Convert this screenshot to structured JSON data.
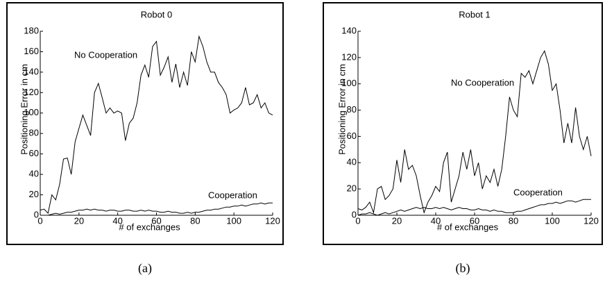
{
  "chart_data": [
    {
      "type": "line",
      "title": "Robot 0",
      "caption": "(a)",
      "xlabel": "# of exchanges",
      "ylabel": "Positioning Error in cm",
      "x": [
        0,
        2,
        4,
        6,
        8,
        10,
        12,
        14,
        16,
        18,
        20,
        22,
        24,
        26,
        28,
        30,
        32,
        34,
        36,
        38,
        40,
        42,
        44,
        46,
        48,
        50,
        52,
        54,
        56,
        58,
        60,
        62,
        64,
        66,
        68,
        70,
        72,
        74,
        76,
        78,
        80,
        82,
        84,
        86,
        88,
        90,
        92,
        94,
        96,
        98,
        100,
        102,
        104,
        106,
        108,
        110,
        112,
        114,
        116,
        118,
        120
      ],
      "series": [
        {
          "name": "No Cooperation",
          "color": "#000000",
          "values": [
            5,
            6,
            2,
            20,
            15,
            30,
            55,
            56,
            40,
            72,
            85,
            98,
            88,
            78,
            120,
            129,
            115,
            100,
            105,
            100,
            102,
            100,
            73,
            90,
            95,
            110,
            137,
            147,
            135,
            165,
            170,
            137,
            145,
            155,
            130,
            148,
            125,
            140,
            127,
            160,
            150,
            175,
            165,
            150,
            140,
            140,
            130,
            125,
            118,
            100,
            103,
            105,
            110,
            125,
            108,
            110,
            118,
            105,
            110,
            100,
            98
          ]
        },
        {
          "name": "Cooperation",
          "color": "#000000",
          "values": [
            0,
            0,
            0,
            1,
            2,
            1,
            2,
            3,
            3,
            4,
            5,
            5,
            6,
            5,
            6,
            5,
            5,
            4,
            5,
            5,
            4,
            4,
            5,
            5,
            4,
            4,
            5,
            4,
            5,
            4,
            4,
            3,
            3,
            4,
            3,
            3,
            2,
            2,
            3,
            2,
            3,
            3,
            4,
            5,
            5,
            6,
            6,
            7,
            8,
            8,
            9,
            9,
            10,
            9,
            10,
            11,
            11,
            12,
            11,
            12,
            12
          ]
        }
      ],
      "xlim": [
        0,
        120
      ],
      "xticks": [
        0,
        20,
        40,
        60,
        80,
        100,
        120
      ],
      "ylim": [
        0,
        180
      ],
      "yticks": [
        0,
        20,
        40,
        60,
        80,
        100,
        120,
        140,
        160,
        180
      ]
    },
    {
      "type": "line",
      "title": "Robot 1",
      "caption": "(b)",
      "xlabel": "# of exchanges",
      "ylabel": "Positioning Error in cm",
      "x": [
        0,
        2,
        4,
        6,
        8,
        10,
        12,
        14,
        16,
        18,
        20,
        22,
        24,
        26,
        28,
        30,
        32,
        34,
        36,
        38,
        40,
        42,
        44,
        46,
        48,
        50,
        52,
        54,
        56,
        58,
        60,
        62,
        64,
        66,
        68,
        70,
        72,
        74,
        76,
        78,
        80,
        82,
        84,
        86,
        88,
        90,
        92,
        94,
        96,
        98,
        100,
        102,
        104,
        106,
        108,
        110,
        112,
        114,
        116,
        118,
        120
      ],
      "series": [
        {
          "name": "No Cooperation",
          "color": "#000000",
          "values": [
            5,
            4,
            6,
            10,
            2,
            20,
            22,
            12,
            15,
            20,
            42,
            25,
            50,
            35,
            38,
            30,
            15,
            2,
            10,
            15,
            22,
            18,
            40,
            48,
            10,
            20,
            30,
            48,
            35,
            50,
            30,
            40,
            20,
            30,
            25,
            35,
            22,
            35,
            60,
            90,
            80,
            75,
            108,
            105,
            110,
            100,
            110,
            120,
            125,
            115,
            95,
            100,
            80,
            55,
            70,
            55,
            82,
            60,
            50,
            60,
            45
          ]
        },
        {
          "name": "Cooperation",
          "color": "#000000",
          "values": [
            0,
            1,
            1,
            2,
            1,
            0,
            1,
            2,
            1,
            2,
            3,
            4,
            3,
            4,
            5,
            6,
            5,
            6,
            5,
            5,
            6,
            5,
            6,
            5,
            4,
            5,
            6,
            5,
            5,
            4,
            4,
            5,
            4,
            4,
            3,
            4,
            3,
            3,
            2,
            2,
            2,
            3,
            3,
            4,
            5,
            6,
            7,
            8,
            8,
            9,
            9,
            10,
            9,
            10,
            11,
            11,
            10,
            11,
            12,
            12,
            12
          ]
        }
      ],
      "xlim": [
        0,
        120
      ],
      "xticks": [
        0,
        20,
        40,
        60,
        80,
        100,
        120
      ],
      "ylim": [
        0,
        140
      ],
      "yticks": [
        0,
        20,
        40,
        60,
        80,
        100,
        120,
        140
      ]
    }
  ]
}
